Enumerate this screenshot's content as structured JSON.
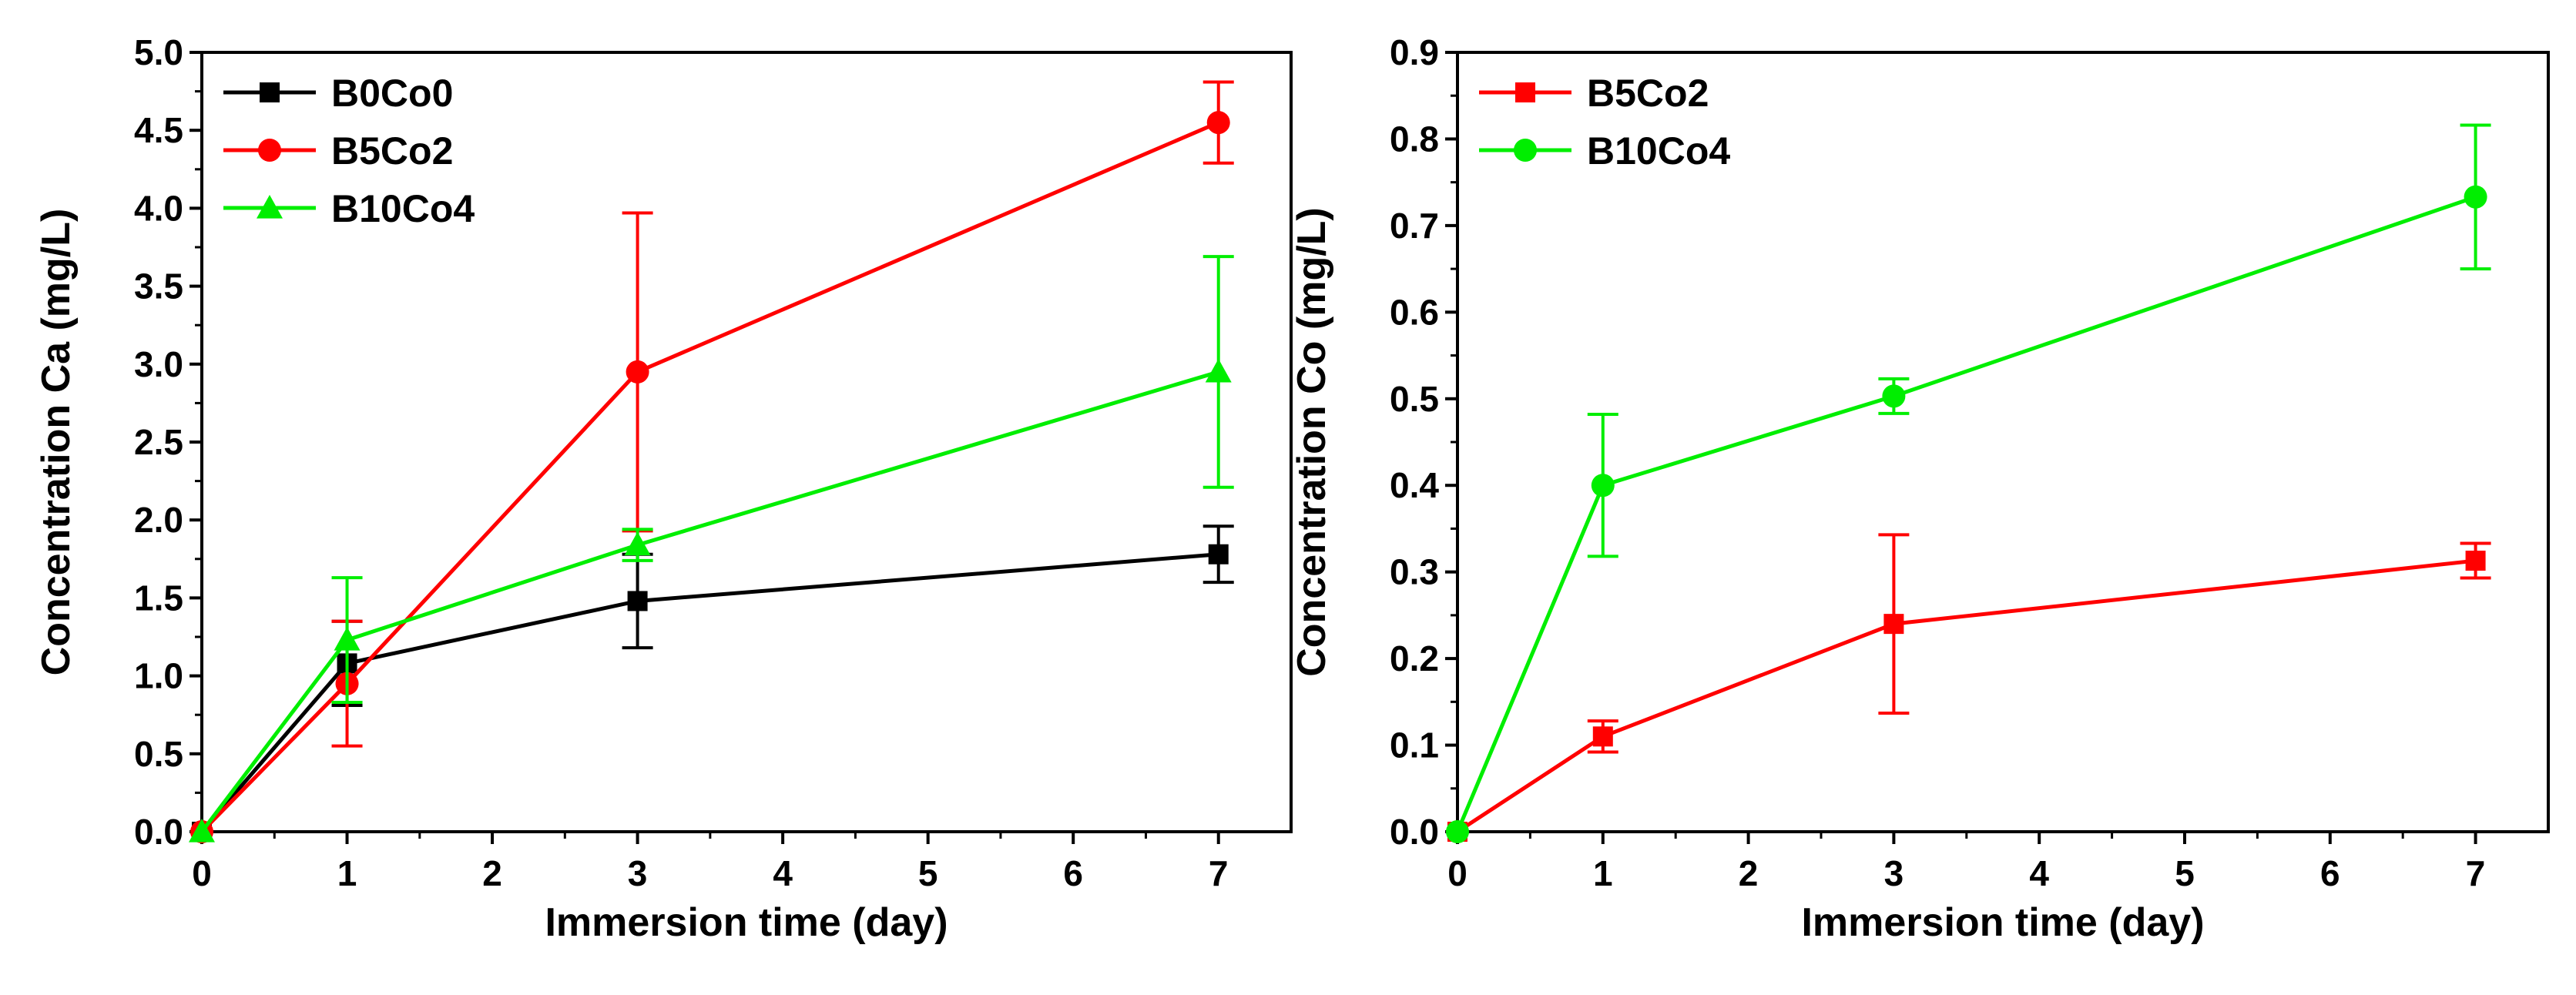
{
  "chart_data": [
    {
      "type": "line",
      "title": "",
      "xlabel": "Immersion time (day)",
      "ylabel": "Concentration Ca (mg/L)",
      "xlim": [
        0,
        7.5
      ],
      "ylim": [
        0,
        5.0
      ],
      "xticks": [
        0,
        1,
        2,
        3,
        4,
        5,
        6,
        7
      ],
      "yticks": [
        0,
        0.5,
        1.0,
        1.5,
        2.0,
        2.5,
        3.0,
        3.5,
        4.0,
        4.5,
        5.0
      ],
      "x_tick_labels": [
        "0",
        "1",
        "2",
        "3",
        "4",
        "5",
        "6",
        "7"
      ],
      "y_tick_labels": [
        "0.0",
        "0.5",
        "1.0",
        "1.5",
        "2.0",
        "2.5",
        "3.0",
        "3.5",
        "4.0",
        "4.5",
        "5.0"
      ],
      "legend_position": "top-left",
      "series": [
        {
          "name": "B0Co0",
          "color": "#000000",
          "marker": "square",
          "x": [
            0,
            1,
            3,
            7
          ],
          "values": [
            0,
            1.08,
            1.48,
            1.78
          ],
          "errors": [
            0,
            0.27,
            0.3,
            0.18
          ]
        },
        {
          "name": "B5Co2",
          "color": "#ff0000",
          "marker": "circle",
          "x": [
            0,
            1,
            3,
            7
          ],
          "values": [
            0,
            0.95,
            2.95,
            4.55
          ],
          "errors": [
            0,
            0.4,
            1.02,
            0.26
          ]
        },
        {
          "name": "B10Co4",
          "color": "#00ee00",
          "marker": "triangle",
          "x": [
            0,
            1,
            3,
            7
          ],
          "values": [
            0,
            1.23,
            1.84,
            2.95
          ],
          "errors": [
            0,
            0.4,
            0.1,
            0.74
          ]
        }
      ]
    },
    {
      "type": "line",
      "title": "",
      "xlabel": "Immersion time (day)",
      "ylabel": "Concentration Co (mg/L)",
      "xlim": [
        0,
        7.5
      ],
      "ylim": [
        0,
        0.9
      ],
      "xticks": [
        0,
        1,
        2,
        3,
        4,
        5,
        6,
        7
      ],
      "yticks": [
        0,
        0.1,
        0.2,
        0.3,
        0.4,
        0.5,
        0.6,
        0.7,
        0.8,
        0.9
      ],
      "x_tick_labels": [
        "0",
        "1",
        "2",
        "3",
        "4",
        "5",
        "6",
        "7"
      ],
      "y_tick_labels": [
        "0.0",
        "0.1",
        "0.2",
        "0.3",
        "0.4",
        "0.5",
        "0.6",
        "0.7",
        "0.8",
        "0.9"
      ],
      "legend_position": "top-left",
      "series": [
        {
          "name": "B5Co2",
          "color": "#ff0000",
          "marker": "square",
          "x": [
            0,
            1,
            3,
            7
          ],
          "values": [
            0,
            0.11,
            0.24,
            0.313
          ],
          "errors": [
            0,
            0.018,
            0.103,
            0.02
          ]
        },
        {
          "name": "B10Co4",
          "color": "#00ee00",
          "marker": "circle",
          "x": [
            0,
            1,
            3,
            7
          ],
          "values": [
            0,
            0.4,
            0.503,
            0.733
          ],
          "errors": [
            0,
            0.082,
            0.02,
            0.083
          ]
        }
      ]
    }
  ]
}
